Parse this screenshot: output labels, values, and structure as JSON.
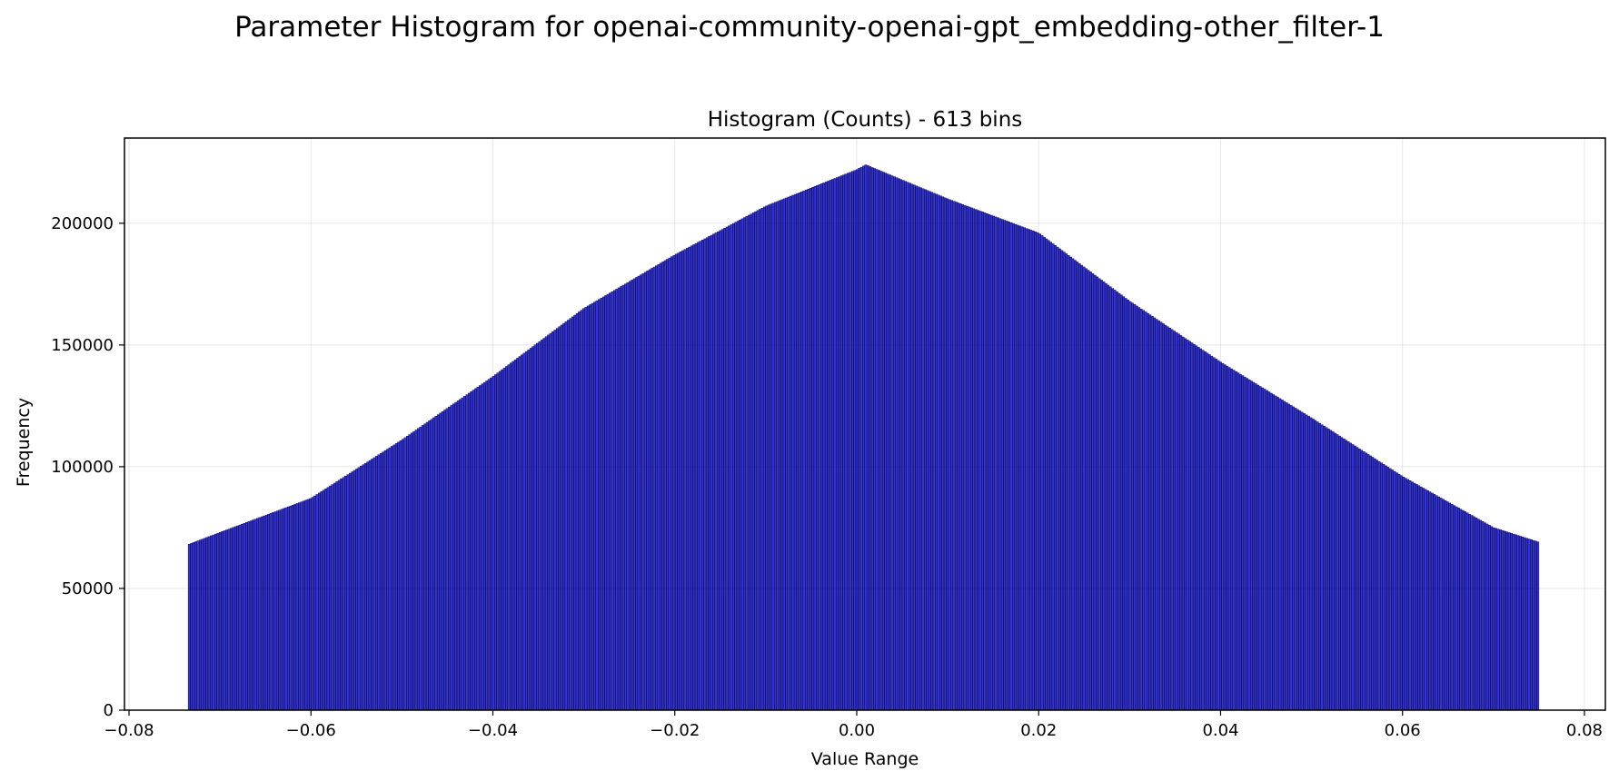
{
  "chart_data": {
    "type": "bar",
    "suptitle": "Parameter Histogram for openai-community-openai-gpt_embedding-other_filter-1",
    "title": "Histogram (Counts) - 613 bins",
    "xlabel": "Value Range",
    "ylabel": "Frequency",
    "bins": 613,
    "data_range": [
      -0.0735,
      0.075
    ],
    "xlim": [
      -0.0805,
      0.0823
    ],
    "ylim": [
      0,
      235000
    ],
    "grid": true,
    "bar_color": "#0000cd",
    "edge_color": "#000000",
    "xticks": [
      -0.08,
      -0.06,
      -0.04,
      -0.02,
      0.0,
      0.02,
      0.04,
      0.06,
      0.08
    ],
    "xtick_labels": [
      "−0.08",
      "−0.06",
      "−0.04",
      "−0.02",
      "0.00",
      "0.02",
      "0.04",
      "0.06",
      "0.08"
    ],
    "yticks": [
      0,
      50000,
      100000,
      150000,
      200000
    ],
    "ytick_labels": [
      "0",
      "50000",
      "100000",
      "150000",
      "200000"
    ],
    "profile_x": [
      -0.0735,
      -0.07,
      -0.06,
      -0.05,
      -0.04,
      -0.03,
      -0.02,
      -0.01,
      0.0,
      0.001,
      0.01,
      0.02,
      0.03,
      0.04,
      0.05,
      0.06,
      0.07,
      0.075
    ],
    "profile_y": [
      68000,
      73000,
      87000,
      111000,
      137000,
      165000,
      187000,
      207000,
      222000,
      224000,
      210000,
      196000,
      168000,
      143000,
      120000,
      96000,
      75000,
      69000
    ]
  }
}
